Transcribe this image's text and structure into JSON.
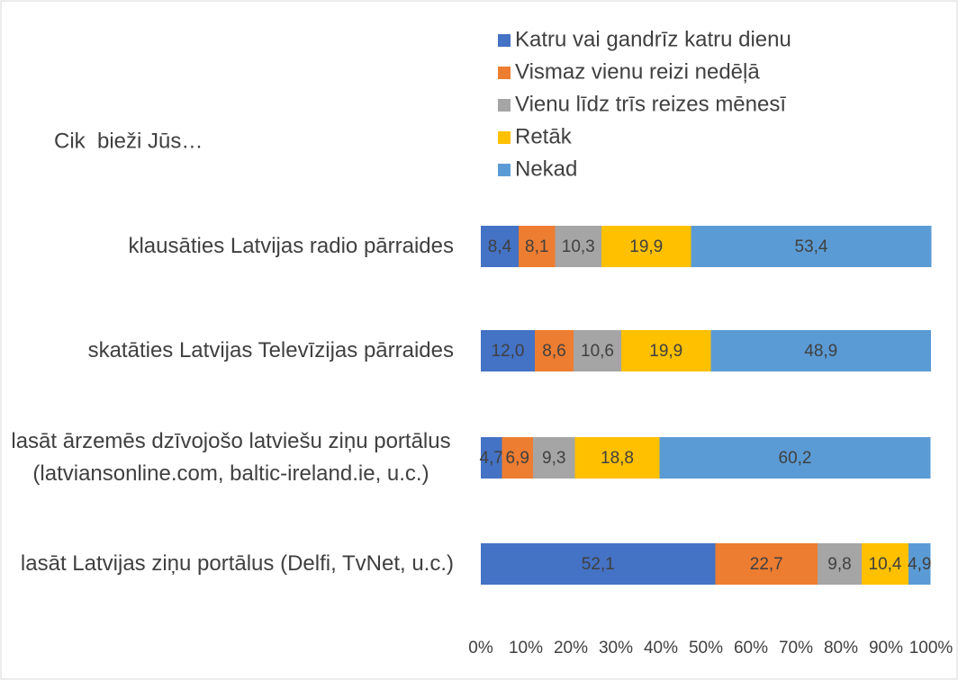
{
  "chart_data": {
    "type": "stacked-bar-horizontal",
    "title": "Cik  bieži Jūs…",
    "categories": [
      "klausāties Latvijas radio pārraides",
      "skatāties Latvijas Televīzijas pārraides",
      "lasāt ārzemēs dzīvojošo latviešu ziņu portālus (latviansonline.com, baltic-ireland.ie, u.c.)",
      "lasāt Latvijas ziņu portālus (Delfi, TvNet, u.c.)"
    ],
    "series": [
      {
        "name": "Katru vai gandrīz katru dienu",
        "color": "#4472c4",
        "values": [
          8.4,
          12.0,
          4.7,
          52.1
        ],
        "value_labels": [
          "8,4",
          "12,0",
          "4,7",
          "52,1"
        ]
      },
      {
        "name": "Vismaz vienu reizi nedēļā",
        "color": "#ed7d31",
        "values": [
          8.1,
          8.6,
          6.9,
          22.7
        ],
        "value_labels": [
          "8,1",
          "8,6",
          "6,9",
          "22,7"
        ]
      },
      {
        "name": "Vienu līdz trīs reizes mēnesī",
        "color": "#a5a5a5",
        "values": [
          10.3,
          10.6,
          9.3,
          9.8
        ],
        "value_labels": [
          "10,3",
          "10,6",
          "9,3",
          "9,8"
        ]
      },
      {
        "name": "Retāk",
        "color": "#ffc000",
        "values": [
          19.9,
          19.9,
          18.8,
          10.4
        ],
        "value_labels": [
          "19,9",
          "19,9",
          "18,8",
          "10,4"
        ]
      },
      {
        "name": "Nekad",
        "color": "#5b9bd5",
        "values": [
          53.4,
          48.9,
          60.2,
          4.9
        ],
        "value_labels": [
          "53,4",
          "48,9",
          "60,2",
          "4,9"
        ]
      }
    ],
    "xlim": [
      0,
      100
    ],
    "xticks": [
      {
        "value": 0,
        "label": "0%"
      },
      {
        "value": 10,
        "label": "10%"
      },
      {
        "value": 20,
        "label": "20%"
      },
      {
        "value": 30,
        "label": "30%"
      },
      {
        "value": 40,
        "label": "40%"
      },
      {
        "value": 50,
        "label": "50%"
      },
      {
        "value": 60,
        "label": "60%"
      },
      {
        "value": 70,
        "label": "70%"
      },
      {
        "value": 80,
        "label": "80%"
      },
      {
        "value": 90,
        "label": "90%"
      },
      {
        "value": 100,
        "label": "100%"
      }
    ],
    "legend": "top-right"
  }
}
